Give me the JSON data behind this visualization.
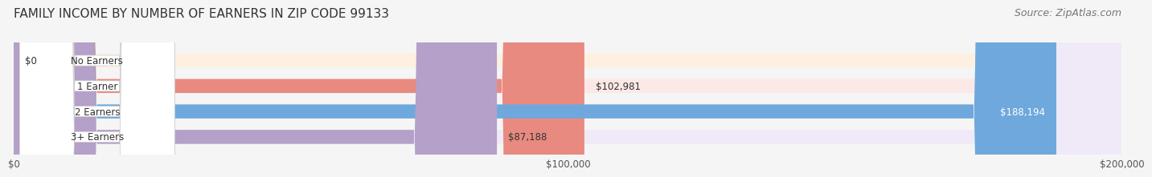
{
  "title": "FAMILY INCOME BY NUMBER OF EARNERS IN ZIP CODE 99133",
  "source": "Source: ZipAtlas.com",
  "categories": [
    "No Earners",
    "1 Earner",
    "2 Earners",
    "3+ Earners"
  ],
  "values": [
    0,
    102981,
    188194,
    87188
  ],
  "bar_colors": [
    "#f5c992",
    "#e88a80",
    "#6fa8dc",
    "#b4a0c8"
  ],
  "label_colors": [
    "#c8964a",
    "#c0554a",
    "#3a78b5",
    "#8060a0"
  ],
  "bg_colors": [
    "#fdf0e0",
    "#fce8e6",
    "#e8f0fa",
    "#f0eaf8"
  ],
  "value_labels": [
    "$0",
    "$102,981",
    "$188,194",
    "$87,188"
  ],
  "xlim": [
    0,
    200000
  ],
  "xticks": [
    0,
    100000,
    200000
  ],
  "xtick_labels": [
    "$0",
    "$100,000",
    "$200,000"
  ],
  "title_fontsize": 11,
  "source_fontsize": 9,
  "bar_height": 0.55,
  "background_color": "#f5f5f5",
  "bar_bg_color": "#eeeeee"
}
